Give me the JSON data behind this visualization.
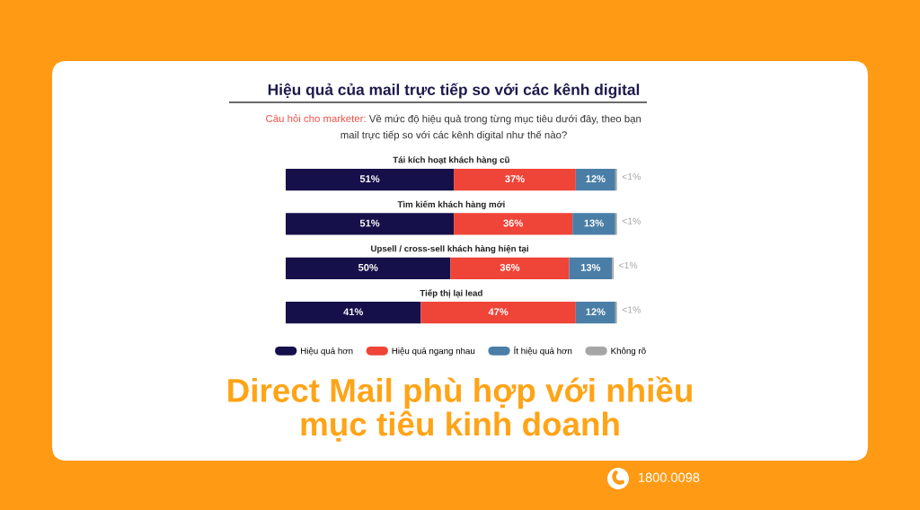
{
  "chart_data": {
    "type": "bar",
    "orientation": "horizontal",
    "stacked": true,
    "title": "Hiệu quả của mail trực tiếp so với các kênh digital",
    "subtitle": "Về mức độ hiệu quả trong từng mục tiêu dưới đây, theo bạn\nmail trực tiếp so với các kênh digital như thế nào?",
    "annotations": [
      "Câu hỏi cho marketer:",
      "Direct Mail phù hợp với nhiều\nmục tiêu kinh doanh",
      "1800.0098"
    ],
    "categories": [
      "Tái kích hoạt khách hàng cũ",
      "Tìm kiếm khách hàng mới",
      "Upsell / cross-sell khách hàng hiện tại",
      "Tiếp thị lại lead"
    ],
    "series": [
      {
        "name": "Hiệu quả hơn",
        "color": "#150f4a",
        "values": [
          51,
          51,
          50,
          41
        ],
        "value_labels": [
          "51%",
          "51%",
          "50%",
          "41%"
        ]
      },
      {
        "name": "Hiệu quả ngang nhau",
        "color": "#ef4438",
        "values": [
          37,
          36,
          36,
          47
        ],
        "value_labels": [
          "37%",
          "36%",
          "36%",
          "47%"
        ]
      },
      {
        "name": "Ít hiệu quả hơn",
        "color": "#4a7ea6",
        "values": [
          12,
          13,
          13,
          12
        ],
        "value_labels": [
          "12%",
          "13%",
          "13%",
          "12%"
        ]
      },
      {
        "name": "Không rõ",
        "color": "#a6a6a6",
        "values": [
          0.5,
          0.5,
          0.5,
          0.5
        ],
        "value_labels": [
          "<1%",
          "<1%",
          "<1%",
          "<1%"
        ]
      }
    ],
    "legend": "bottom",
    "tick_labels": false
  }
}
